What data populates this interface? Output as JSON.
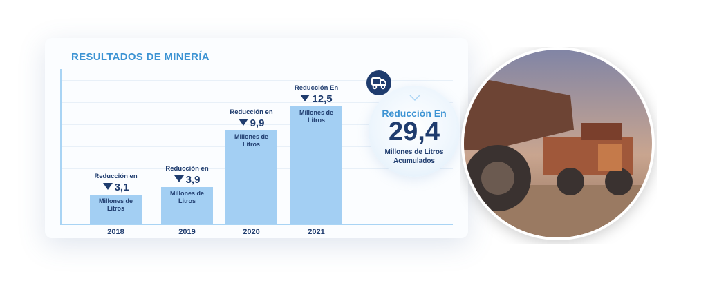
{
  "chart_data": {
    "type": "bar",
    "title": "RESULTADOS DE MINERÍA",
    "categories": [
      "2018",
      "2019",
      "2020",
      "2021"
    ],
    "values": [
      3.1,
      3.9,
      9.9,
      12.5
    ],
    "value_labels": [
      "3,1",
      "3,9",
      "9,9",
      "12,5"
    ],
    "label_prefixes": [
      "Reducción en",
      "Reducción en",
      "Reducción en",
      "Reducción En"
    ],
    "unit_label": "Millones de Litros",
    "color": "#a3cff3"
  },
  "summary": {
    "title": "Reducción En",
    "value": "29,4",
    "caption": "Millones de Litros Acumulados"
  }
}
